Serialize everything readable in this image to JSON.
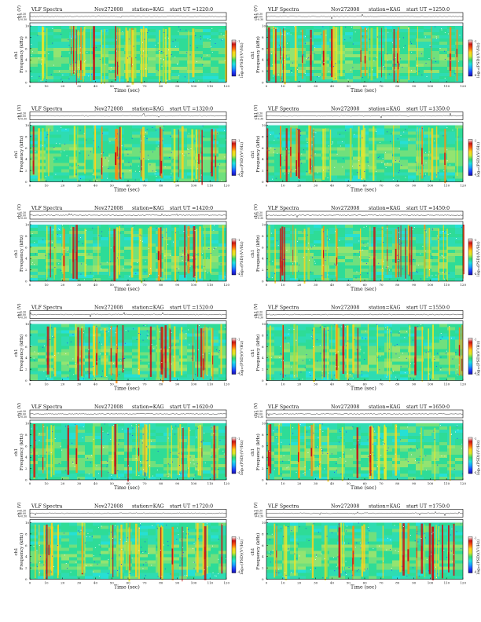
{
  "page": {
    "background": "#ffffff"
  },
  "colorscale": {
    "stops": [
      "#1a12a8",
      "#1e3cff",
      "#1aa0ff",
      "#20e0e0",
      "#30d870",
      "#d8e82a",
      "#ffd21a",
      "#ff5a10",
      "#c81414",
      "#ffffff"
    ],
    "ticks": [
      "-4",
      "-1"
    ],
    "label": "log₁₀(PSD)(V²/Hz)"
  },
  "common": {
    "header_left": "VLF Spectra",
    "date": "Nov272008",
    "station": "station=KAG",
    "ch1_ylabel": "ch1 (V)",
    "ch1_ticks": [
      "0.30",
      "0.00",
      "-0.30"
    ],
    "spec_ylabel_line1": "ch1",
    "spec_ylabel_line2": "Frequency (kHz)",
    "y_ticks": [
      "0",
      "2",
      "4",
      "6",
      "8",
      "10"
    ],
    "x_ticks": [
      "0",
      "10",
      "20",
      "30",
      "40",
      "50",
      "60",
      "70",
      "80",
      "90",
      "100",
      "110",
      "120"
    ],
    "xlabel": "Time (sec)"
  },
  "panels": [
    {
      "ut": "start  UT =1220:0"
    },
    {
      "ut": "start  UT =1250:0"
    },
    {
      "ut": "start  UT =1320:0"
    },
    {
      "ut": "start  UT =1350:0"
    },
    {
      "ut": "start  UT =1420:0"
    },
    {
      "ut": "start  UT =1450:0"
    },
    {
      "ut": "start  UT =1520:0"
    },
    {
      "ut": "start  UT =1550:0"
    },
    {
      "ut": "start  UT =1620:0"
    },
    {
      "ut": "start  UT =1650:0"
    },
    {
      "ut": "start  UT =1720:0"
    },
    {
      "ut": "start  UT =1750:0"
    }
  ],
  "chart_data": {
    "type": "heatmap",
    "description_free": true,
    "x_range_sec": [
      0,
      120
    ],
    "y_range_khz": [
      0,
      10
    ],
    "ch1_range_v": [
      -0.3,
      0.3
    ],
    "colorbar_range_log10_psd": [
      -4,
      -1
    ],
    "panel_count": 12
  }
}
